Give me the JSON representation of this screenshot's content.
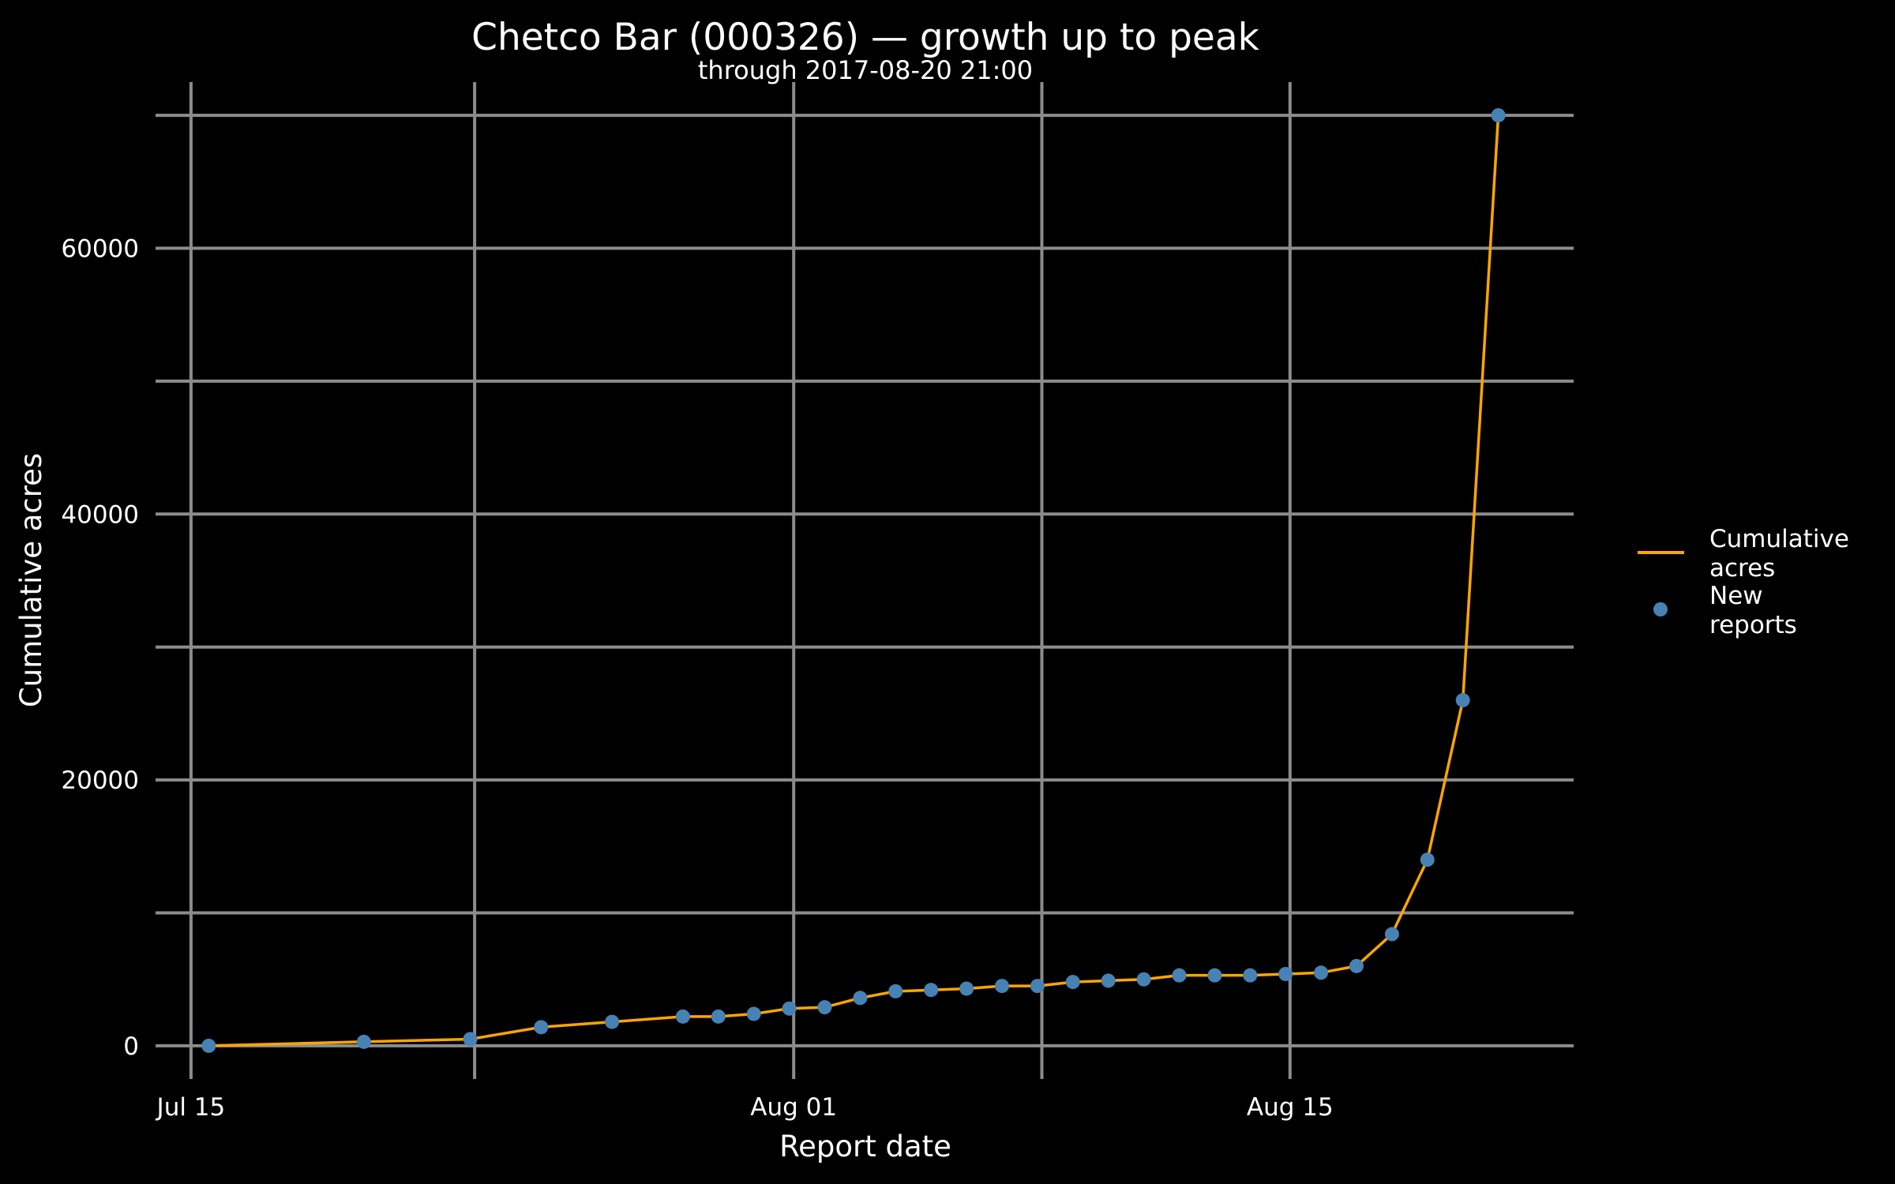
{
  "chart_data": {
    "type": "line",
    "title": "Chetco Bar (000326) — growth up to peak",
    "subtitle": "through 2017-08-20 21:00",
    "xlabel": "Report date",
    "ylabel": "Cumulative acres",
    "x_axis": {
      "kind": "date",
      "range": [
        "2017-07-14",
        "2017-08-23"
      ],
      "ticks": [
        {
          "value": "2017-07-15",
          "label": "Jul 15"
        },
        {
          "value": "2017-08-01",
          "label": "Aug 01"
        },
        {
          "value": "2017-08-15",
          "label": "Aug 15"
        }
      ],
      "minor_gridlines": [
        "2017-07-23",
        "2017-08-08"
      ]
    },
    "y_axis": {
      "range": [
        -2500,
        72500
      ],
      "ticks": [
        {
          "value": 0,
          "label": "0"
        },
        {
          "value": 20000,
          "label": "20000"
        },
        {
          "value": 40000,
          "label": "40000"
        },
        {
          "value": 60000,
          "label": "60000"
        }
      ],
      "minor_gridlines": [
        10000,
        30000,
        50000,
        70000
      ]
    },
    "grid": true,
    "legend_position": "right",
    "colors": {
      "background": "#000000",
      "line": "#FFA500",
      "points": "#4682B4",
      "grid": "#8C8C8C",
      "text": "#FFFFFF"
    },
    "series": [
      {
        "name": "Cumulative acres",
        "kind": "line",
        "x": [
          "2017-07-15 12:00",
          "2017-07-19 21:00",
          "2017-07-22 21:00",
          "2017-07-24 21:00",
          "2017-07-26 21:00",
          "2017-07-28 21:00",
          "2017-07-29 21:00",
          "2017-07-30 21:00",
          "2017-07-31 21:00",
          "2017-08-01 21:00",
          "2017-08-02 21:00",
          "2017-08-03 21:00",
          "2017-08-04 21:00",
          "2017-08-05 21:00",
          "2017-08-06 21:00",
          "2017-08-07 21:00",
          "2017-08-08 21:00",
          "2017-08-09 21:00",
          "2017-08-10 21:00",
          "2017-08-11 21:00",
          "2017-08-12 21:00",
          "2017-08-13 21:00",
          "2017-08-14 21:00",
          "2017-08-15 21:00",
          "2017-08-16 21:00",
          "2017-08-17 21:00",
          "2017-08-18 21:00",
          "2017-08-19 21:00",
          "2017-08-20 21:00"
        ],
        "y": [
          0,
          300,
          500,
          1400,
          1800,
          2200,
          2200,
          2400,
          2800,
          2900,
          3600,
          4100,
          4200,
          4300,
          4500,
          4500,
          4800,
          4900,
          5000,
          5300,
          5300,
          5300,
          5400,
          5500,
          6000,
          8400,
          14000,
          26000,
          70000
        ]
      },
      {
        "name": "New reports",
        "kind": "points",
        "x": [
          "2017-07-15 12:00",
          "2017-07-19 21:00",
          "2017-07-22 21:00",
          "2017-07-24 21:00",
          "2017-07-26 21:00",
          "2017-07-28 21:00",
          "2017-07-29 21:00",
          "2017-07-30 21:00",
          "2017-07-31 21:00",
          "2017-08-01 21:00",
          "2017-08-02 21:00",
          "2017-08-03 21:00",
          "2017-08-04 21:00",
          "2017-08-05 21:00",
          "2017-08-06 21:00",
          "2017-08-07 21:00",
          "2017-08-08 21:00",
          "2017-08-09 21:00",
          "2017-08-10 21:00",
          "2017-08-11 21:00",
          "2017-08-12 21:00",
          "2017-08-13 21:00",
          "2017-08-14 21:00",
          "2017-08-15 21:00",
          "2017-08-16 21:00",
          "2017-08-17 21:00",
          "2017-08-18 21:00",
          "2017-08-19 21:00",
          "2017-08-20 21:00"
        ],
        "y": [
          0,
          300,
          500,
          1400,
          1800,
          2200,
          2200,
          2400,
          2800,
          2900,
          3600,
          4100,
          4200,
          4300,
          4500,
          4500,
          4800,
          4900,
          5000,
          5300,
          5300,
          5300,
          5400,
          5500,
          6000,
          8400,
          14000,
          26000,
          70000
        ]
      }
    ],
    "legend": {
      "line_label": "Cumulative acres",
      "points_label": "New reports"
    }
  }
}
